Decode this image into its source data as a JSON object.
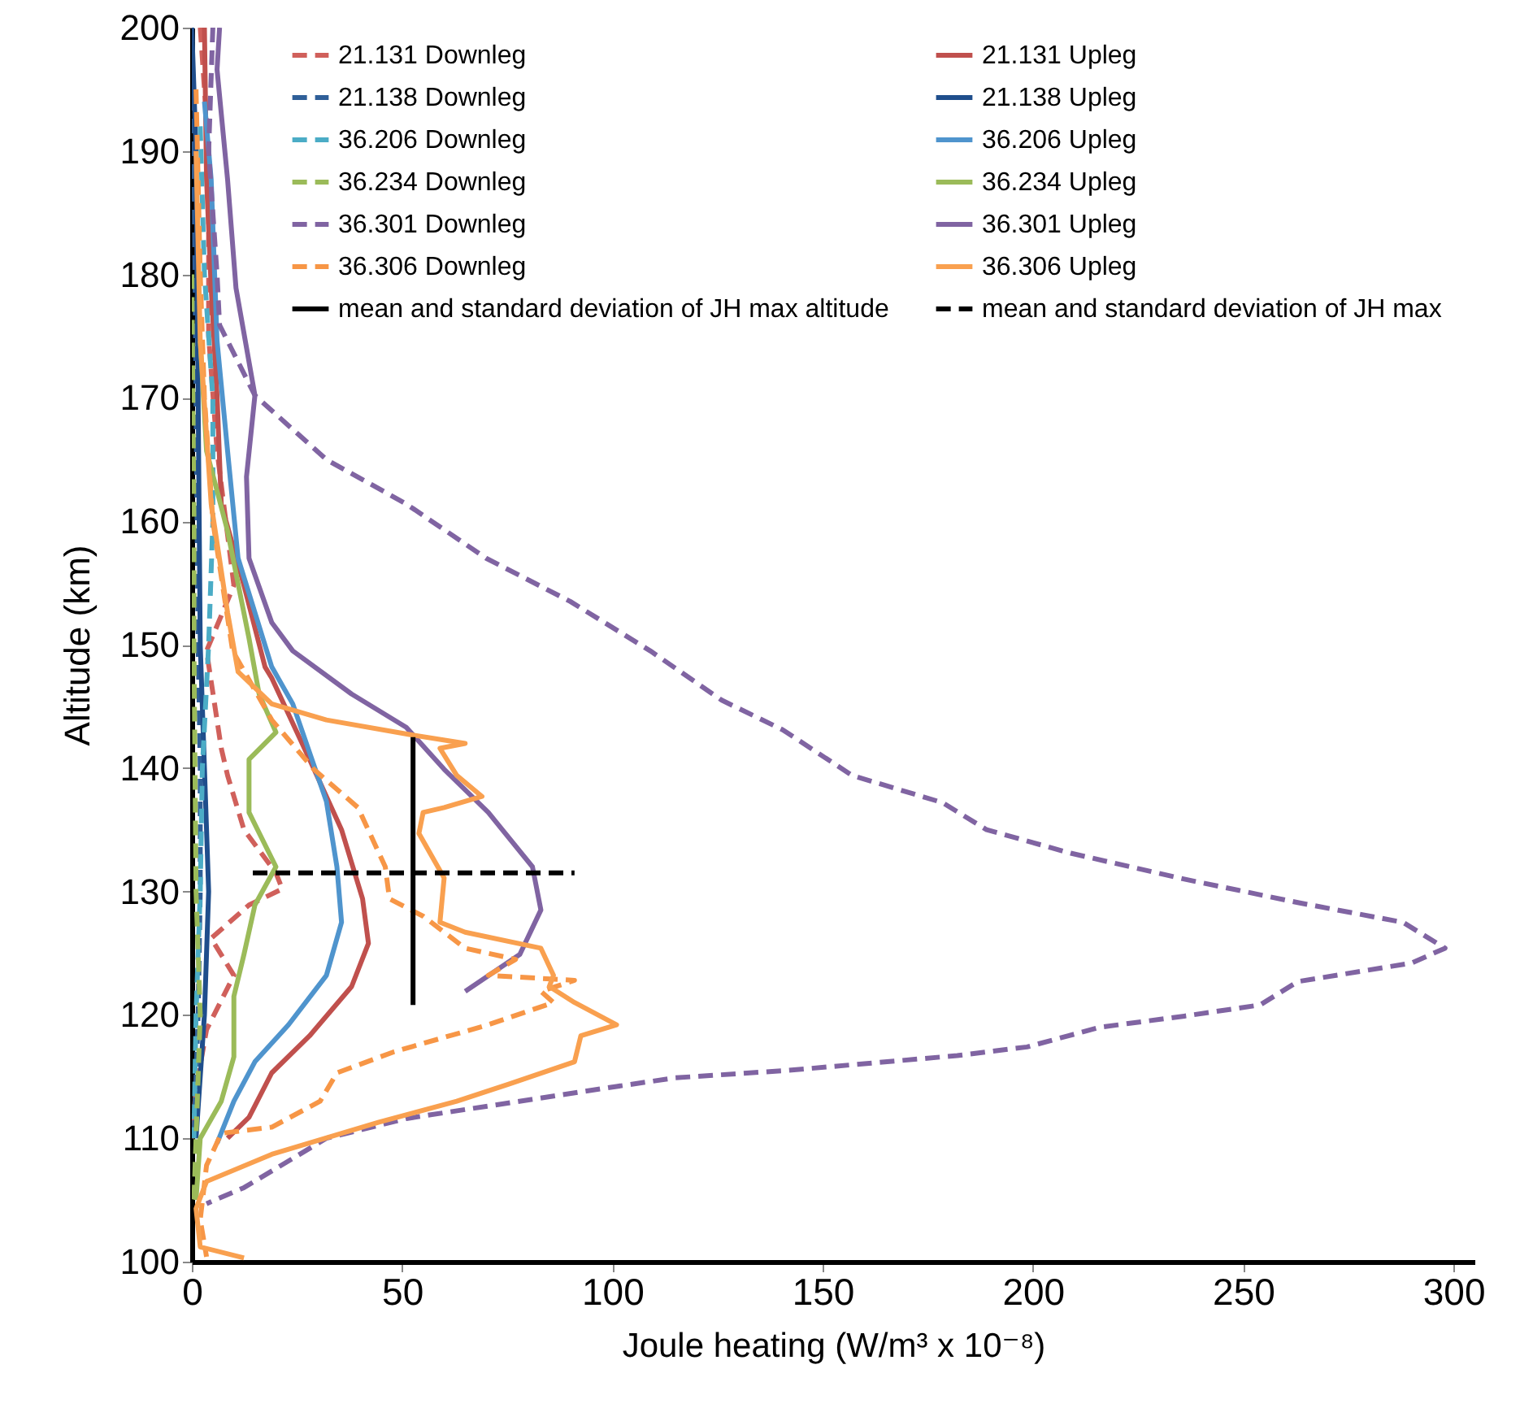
{
  "chart_data": {
    "type": "line",
    "xlabel": "Joule heating (W/m³ x 10⁻⁸)",
    "ylabel": "Altitude (km)",
    "xlim": [
      0,
      305
    ],
    "xticks": [
      0,
      50,
      100,
      150,
      200,
      250,
      300
    ],
    "ylim": [
      100,
      200
    ],
    "yticks": [
      100,
      110,
      120,
      130,
      140,
      150,
      160,
      170,
      180,
      190,
      200
    ],
    "grid": false,
    "legend": "top",
    "series": [
      {
        "name": "21.131 Downleg",
        "color": "#d0605b",
        "line_style": "dashed",
        "x": [
          2,
          4,
          4,
          6,
          10,
          3.5,
          7,
          8.5,
          12.4,
          20,
          21.5,
          13.6,
          4.6,
          10,
          3.5,
          1,
          0
        ],
        "values": [
          200,
          190,
          175,
          165.7,
          154.8,
          149.5,
          141.6,
          139.4,
          135,
          131.5,
          130.2,
          128.9,
          126.2,
          123.2,
          118.8,
          114,
          110
        ]
      },
      {
        "name": "21.131 Upleg",
        "color": "#c0504d",
        "line_style": "solid",
        "x": [
          3,
          3.5,
          4.6,
          6,
          7,
          12.4,
          17.4,
          19,
          28,
          35.6,
          40.6,
          42,
          38,
          28,
          19,
          13.6,
          8.5
        ],
        "values": [
          200,
          187.7,
          178.9,
          170.2,
          161.4,
          154.8,
          148.2,
          147.3,
          140.7,
          135,
          129.4,
          125.8,
          122.3,
          118.3,
          115.3,
          111.7,
          110
        ]
      },
      {
        "name": "21.138 Downleg",
        "color": "#2f5f98",
        "line_style": "dashed",
        "x": [
          0,
          0.5,
          1,
          1.5,
          2,
          2,
          1.5,
          0.5
        ],
        "values": [
          200,
          190,
          170,
          150,
          140,
          130,
          120,
          110
        ]
      },
      {
        "name": "21.138 Upleg",
        "color": "#1f4e8c",
        "line_style": "solid",
        "x": [
          0,
          1,
          1.5,
          2,
          3,
          4,
          3,
          1
        ],
        "values": [
          200,
          190,
          170,
          150,
          140,
          130,
          120,
          110
        ]
      },
      {
        "name": "36.206 Downleg",
        "color": "#4bacc6",
        "line_style": "dashed",
        "x": [
          2,
          3,
          5,
          5,
          4,
          2.5,
          2,
          1,
          0.5
        ],
        "values": [
          192,
          180,
          170,
          160,
          150,
          140,
          130,
          120,
          110
        ]
      },
      {
        "name": "36.206 Upleg",
        "color": "#4f94cd",
        "line_style": "solid",
        "x": [
          3,
          4.6,
          6,
          8.5,
          11,
          19,
          24,
          32,
          34.5,
          35.6,
          32,
          23,
          15,
          10,
          6
        ],
        "values": [
          194,
          187.7,
          174.6,
          165.7,
          157,
          148.2,
          145.2,
          137.3,
          132,
          127.5,
          123.2,
          119.2,
          116.2,
          113,
          109.6
        ]
      },
      {
        "name": "36.234 Downleg",
        "color": "#9bbb59",
        "line_style": "dashed",
        "x": [
          0,
          0.5,
          0.5,
          1,
          2,
          1,
          0.5
        ],
        "values": [
          180,
          160,
          150,
          130,
          120,
          110,
          105
        ]
      },
      {
        "name": "36.234 Upleg",
        "color": "#9bbb59",
        "line_style": "solid",
        "x": [
          2,
          3.5,
          8.5,
          13.6,
          16,
          20,
          13.6,
          13.6,
          20,
          15,
          12.4,
          10,
          10,
          7,
          2,
          1
        ],
        "values": [
          174.6,
          165.7,
          159.2,
          150.5,
          146,
          142.9,
          140.7,
          136.4,
          132,
          128.9,
          124.9,
          121.5,
          116.6,
          113,
          110,
          105
        ]
      },
      {
        "name": "36.301 Downleg",
        "color": "#8064a2",
        "line_style": "dashed",
        "x": [
          5,
          4,
          6,
          6.6,
          15,
          32,
          51,
          70,
          90,
          109,
          126,
          140.5,
          157,
          178.5,
          189,
          209,
          236,
          263,
          288,
          298,
          290,
          263,
          254,
          236,
          216,
          198.6,
          182,
          141.7,
          115,
          101,
          51,
          32,
          12.4,
          3.5
        ],
        "values": [
          200,
          190,
          180,
          175.9,
          170.2,
          165,
          161.4,
          157,
          153.5,
          149.5,
          145.5,
          143.1,
          139.4,
          137.2,
          135,
          133.1,
          131,
          129.1,
          127.5,
          125.4,
          124.2,
          122.7,
          120.8,
          119.9,
          119,
          117.4,
          116.7,
          115.5,
          114.9,
          114.2,
          111.6,
          110,
          106,
          104.7
        ]
      },
      {
        "name": "36.301 Upleg",
        "color": "#8064a2",
        "line_style": "solid",
        "x": [
          6.6,
          6,
          8.5,
          10.5,
          15,
          13,
          13.6,
          19,
          24,
          38,
          51,
          60,
          70.5,
          81,
          83,
          78,
          65
        ],
        "values": [
          200,
          196.6,
          187.7,
          178.9,
          170.2,
          163.6,
          157,
          151.8,
          149.5,
          146,
          143.3,
          139.9,
          136.4,
          132,
          128.5,
          124.9,
          121.9
        ]
      },
      {
        "name": "36.306 Downleg",
        "color": "#f79646",
        "line_style": "dashed",
        "x": [
          1,
          2,
          3,
          5,
          9.7,
          19,
          29,
          39.5,
          46,
          47,
          55,
          65,
          77,
          70.5,
          91,
          83,
          86,
          70.5,
          48,
          34.5,
          30.5,
          19,
          7,
          3.5,
          2,
          3.5
        ],
        "values": [
          195,
          180,
          170,
          160,
          149.5,
          143.9,
          139.9,
          136.8,
          132,
          129.4,
          128,
          125.4,
          124.5,
          123.2,
          122.8,
          121.9,
          121,
          119.2,
          117,
          115.3,
          113,
          110.9,
          110.4,
          107.8,
          103.4,
          100.4
        ]
      },
      {
        "name": "36.306 Upleg",
        "color": "#f9a04f",
        "line_style": "solid",
        "x": [
          1,
          2,
          4.6,
          8.5,
          11,
          19,
          32,
          52,
          65,
          59,
          63,
          69,
          60,
          55,
          54,
          60,
          59,
          65,
          83,
          86,
          85,
          91,
          101,
          92.5,
          91,
          75.5,
          63,
          44.5,
          19,
          3.5,
          1,
          2,
          12.4
        ],
        "values": [
          190,
          174.6,
          161.4,
          152.6,
          147.8,
          145.2,
          143.9,
          142.7,
          142,
          141.6,
          139.4,
          137.7,
          136.8,
          136.4,
          134.7,
          131.1,
          127.5,
          126.7,
          125.4,
          123.2,
          122.3,
          121,
          119.2,
          118.3,
          116.2,
          114.4,
          113,
          111.3,
          108.7,
          106.5,
          104.3,
          101.2,
          100.3
        ]
      },
      {
        "name": "mean and standard deviation of JH max altitude",
        "color": "#000000",
        "line_style": "solid",
        "x": [
          52.6,
          52.6
        ],
        "values": [
          120.8,
          142.5
        ]
      },
      {
        "name": "mean and standard deviation of JH max",
        "color": "#000000",
        "line_style": "dashed",
        "x": [
          14.5,
          91
        ],
        "values": [
          131.5,
          131.5
        ]
      }
    ]
  }
}
